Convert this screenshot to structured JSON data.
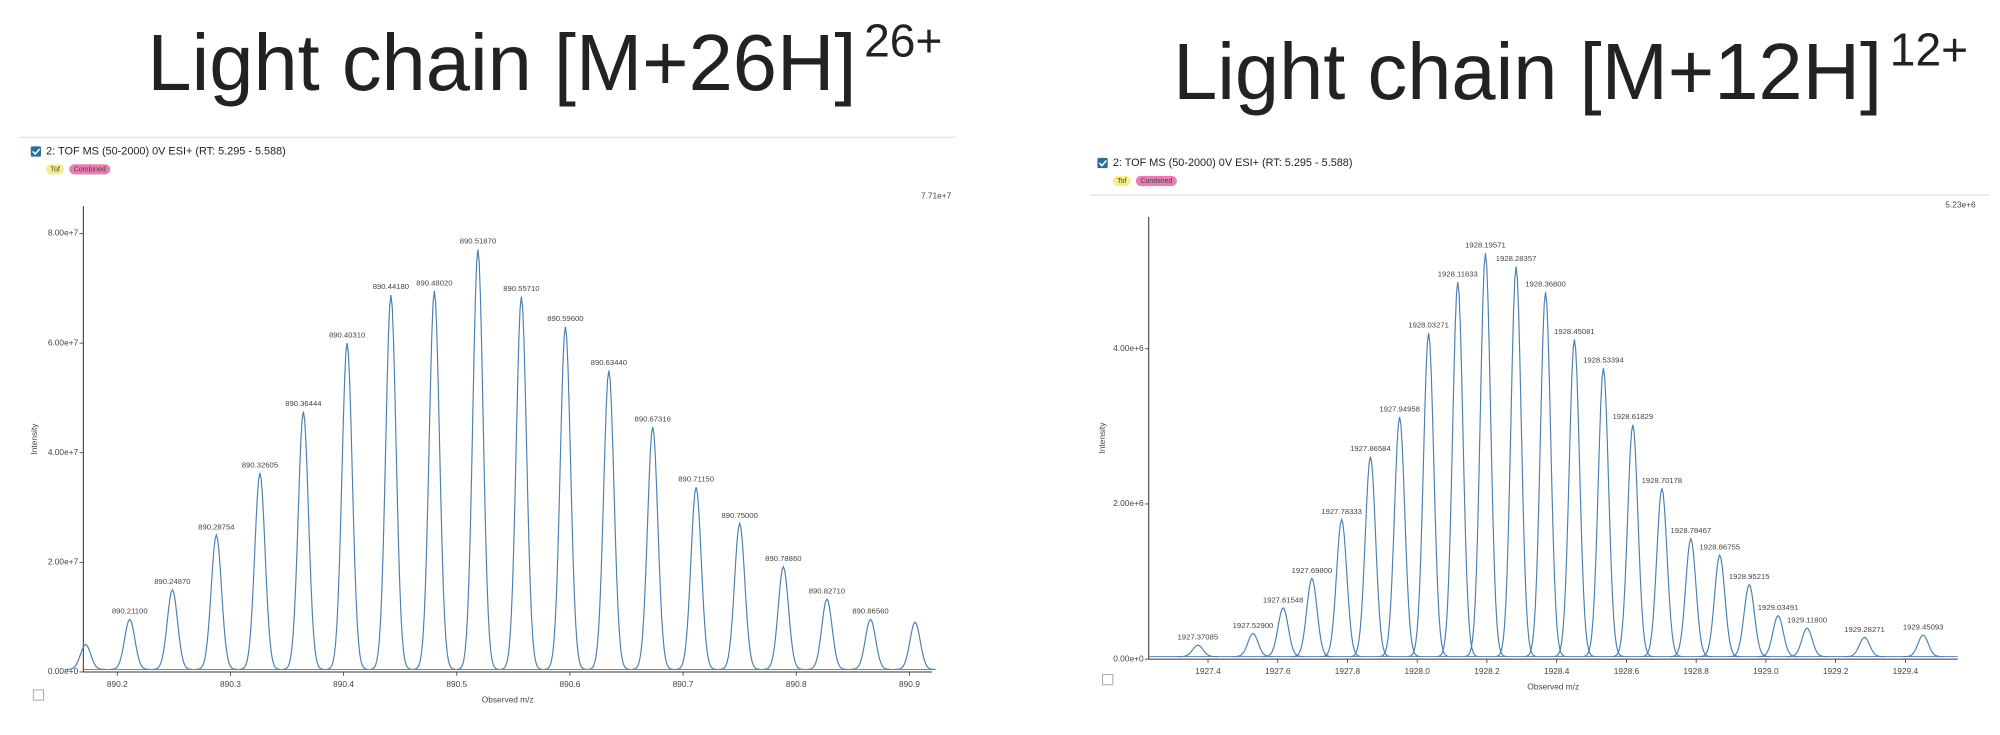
{
  "chart_data": [
    {
      "type": "spectrum",
      "title": "Light chain [M+26H]",
      "title_superscript": "26+",
      "header": "2: TOF MS (50-2000) 0V ESI+ (RT: 5.295 - 5.588)",
      "badges": [
        "Tof",
        "Combined"
      ],
      "max_label": "7.71e+7",
      "ylabel": "Intensity",
      "xlabel": "Observed m/z",
      "color": "#4a7fb0",
      "x": [
        890.172,
        890.211,
        890.2487,
        890.28754,
        890.32605,
        890.36444,
        890.4031,
        890.4418,
        890.4802,
        890.5187,
        890.5571,
        890.596,
        890.6344,
        890.67316,
        890.7115,
        890.75,
        890.7886,
        890.8271,
        890.8656,
        890.905
      ],
      "values": [
        5000000,
        9600000,
        15000000,
        25000000,
        36300000,
        47500000,
        60000000,
        68800000,
        69500000,
        77100000,
        68500000,
        63000000,
        55000000,
        44700000,
        33700000,
        27100000,
        19200000,
        13300000,
        9600000,
        9100000
      ],
      "peak_labels": [
        null,
        "890.21100",
        "890.24870",
        "890.28754",
        "890.32605",
        "890.36444",
        "890.40310",
        "890.44180",
        "890.48020",
        "890.51870",
        "890.55710",
        "890.59600",
        "890.63440",
        "890.67316",
        "890.71150",
        "890.75000",
        "890.78860",
        "890.82710",
        "890.86560",
        null
      ],
      "xlim": [
        890.17,
        890.92
      ],
      "ylim": [
        0,
        85000000
      ],
      "xticks": [
        890.2,
        890.3,
        890.4,
        890.5,
        890.6,
        890.7,
        890.8,
        890.9
      ],
      "yticks": [
        {
          "value": 0,
          "label": "0.00e+0"
        },
        {
          "value": 20000000,
          "label": "2.00e+7"
        },
        {
          "value": 40000000,
          "label": "4.00e+7"
        },
        {
          "value": 60000000,
          "label": "6.00e+7"
        },
        {
          "value": 80000000,
          "label": "8.00e+7"
        }
      ]
    },
    {
      "type": "spectrum",
      "title": "Light chain [M+12H]",
      "title_superscript": "12+",
      "header": "2: TOF MS (50-2000) 0V ESI+ (RT: 5.295 - 5.588)",
      "badges": [
        "Tof",
        "Combined"
      ],
      "max_label": "5.23e+6",
      "ylabel": "Intensity",
      "xlabel": "Observed m/z",
      "color": "#4a7fb0",
      "x": [
        1927.37085,
        1927.529,
        1927.61548,
        1927.698,
        1927.78333,
        1927.86584,
        1927.94958,
        1928.03271,
        1928.11633,
        1928.19571,
        1928.28357,
        1928.368,
        1928.45081,
        1928.53394,
        1928.61829,
        1928.70178,
        1928.78467,
        1928.86755,
        1928.95215,
        1929.03491,
        1929.118,
        1929.28271,
        1929.45093
      ],
      "values": [
        180000,
        330000,
        660000,
        1040000,
        1800000,
        2610000,
        3120000,
        4200000,
        4860000,
        5230000,
        5060000,
        4730000,
        4120000,
        3750000,
        3020000,
        2200000,
        1550000,
        1340000,
        960000,
        560000,
        400000,
        280000,
        310000
      ],
      "peak_labels": [
        "1927.37085",
        "1927.52900",
        "1927.61548",
        "1927.69800",
        "1927.78333",
        "1927.86584",
        "1927.94958",
        "1928.03271",
        "1928.11633",
        "1928.19571",
        "1928.28357",
        "1928.36800",
        "1928.45081",
        "1928.53394",
        "1928.61829",
        "1928.70178",
        "1928.78467",
        "1928.86755",
        "1928.95215",
        "1929.03491",
        "1929.11800",
        "1929.28271",
        "1929.45093"
      ],
      "xlim": [
        1927.23,
        1929.55
      ],
      "ylim": [
        0,
        5700000
      ],
      "xticks": [
        1927.4,
        1927.6,
        1927.8,
        {
          "value": 1928.0,
          "label": "1928.0"
        },
        1928.2,
        1928.4,
        1928.6,
        1928.8,
        {
          "value": 1929.0,
          "label": "1929.0"
        },
        1929.2,
        1929.4
      ],
      "yticks": [
        {
          "value": 0,
          "label": "0.00e+0"
        },
        {
          "value": 2000000,
          "label": "2.00e+6"
        },
        {
          "value": 4000000,
          "label": "4.00e+6"
        }
      ]
    }
  ]
}
